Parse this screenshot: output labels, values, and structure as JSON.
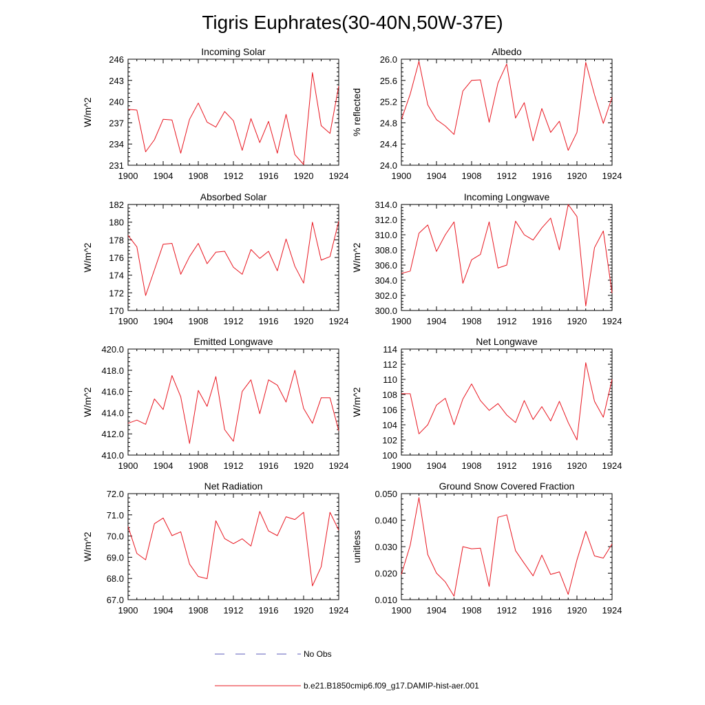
{
  "figure": {
    "title": "Tigris Euphrates(30-40N,50W-37E)",
    "series_color": "#e8141e",
    "obs_color": "#5a5ab8"
  },
  "legend": {
    "obs_label": "No Obs",
    "model_label": "b.e21.B1850cmip6.f09_g17.DAMIP-hist-aer.001"
  },
  "chart_data": [
    {
      "type": "line",
      "title": "Incoming Solar",
      "ylabel": "W/m^2",
      "xlim": [
        1900,
        1924
      ],
      "ylim": [
        231,
        246
      ],
      "xticks": [
        "1900",
        "1904",
        "1908",
        "1912",
        "1916",
        "1920",
        "1924"
      ],
      "yticks": [
        "231",
        "234",
        "237",
        "240",
        "243",
        "246"
      ],
      "x": [
        1900,
        1901,
        1902,
        1903,
        1904,
        1905,
        1906,
        1907,
        1908,
        1909,
        1910,
        1911,
        1912,
        1913,
        1914,
        1915,
        1916,
        1917,
        1918,
        1919,
        1920,
        1921,
        1922,
        1923,
        1924
      ],
      "series": [
        {
          "name": "b.e21.B1850cmip6.f09_g17.DAMIP-hist-aer.001",
          "values": [
            238.9,
            238.8,
            232.9,
            234.6,
            237.5,
            237.4,
            232.7,
            237.5,
            239.8,
            237.1,
            236.4,
            238.6,
            237.3,
            233.1,
            237.6,
            234.2,
            237.2,
            232.7,
            238.2,
            232.5,
            231.1,
            244.1,
            236.6,
            235.5,
            242.2
          ]
        }
      ]
    },
    {
      "type": "line",
      "title": "Albedo",
      "ylabel": "% reflected",
      "xlim": [
        1900,
        1924
      ],
      "ylim": [
        24.0,
        26.0
      ],
      "xticks": [
        "1900",
        "1904",
        "1908",
        "1912",
        "1916",
        "1920",
        "1924"
      ],
      "yticks": [
        "24.0",
        "24.4",
        "24.8",
        "25.2",
        "25.6",
        "26.0"
      ],
      "x": [
        1900,
        1901,
        1902,
        1903,
        1904,
        1905,
        1906,
        1907,
        1908,
        1909,
        1910,
        1911,
        1912,
        1913,
        1914,
        1915,
        1916,
        1917,
        1918,
        1919,
        1920,
        1921,
        1922,
        1923,
        1924
      ],
      "series": [
        {
          "name": "b.e21.B1850cmip6.f09_g17.DAMIP-hist-aer.001",
          "values": [
            24.86,
            25.34,
            25.96,
            25.14,
            24.86,
            24.74,
            24.58,
            25.4,
            25.6,
            25.61,
            24.81,
            25.55,
            25.91,
            24.89,
            25.18,
            24.46,
            25.07,
            24.62,
            24.83,
            24.28,
            24.62,
            25.94,
            25.33,
            24.79,
            25.28
          ]
        }
      ]
    },
    {
      "type": "line",
      "title": "Absorbed Solar",
      "ylabel": "W/m^2",
      "xlim": [
        1900,
        1924
      ],
      "ylim": [
        170,
        182
      ],
      "xticks": [
        "1900",
        "1904",
        "1908",
        "1912",
        "1916",
        "1920",
        "1924"
      ],
      "yticks": [
        "170",
        "172",
        "174",
        "176",
        "178",
        "180",
        "182"
      ],
      "x": [
        1900,
        1901,
        1902,
        1903,
        1904,
        1905,
        1906,
        1907,
        1908,
        1909,
        1910,
        1911,
        1912,
        1913,
        1914,
        1915,
        1916,
        1917,
        1918,
        1919,
        1920,
        1921,
        1922,
        1923,
        1924
      ],
      "series": [
        {
          "name": "b.e21.B1850cmip6.f09_g17.DAMIP-hist-aer.001",
          "values": [
            178.5,
            177.2,
            171.7,
            174.6,
            177.5,
            177.6,
            174.1,
            176.1,
            177.6,
            175.3,
            176.6,
            176.7,
            174.9,
            174.1,
            176.9,
            175.9,
            176.7,
            174.5,
            178.1,
            175.0,
            173.1,
            180.0,
            175.7,
            176.1,
            180.1
          ]
        }
      ]
    },
    {
      "type": "line",
      "title": "Incoming Longwave",
      "ylabel": "W/m^2",
      "xlim": [
        1900,
        1924
      ],
      "ylim": [
        300.0,
        314.0
      ],
      "xticks": [
        "1900",
        "1904",
        "1908",
        "1912",
        "1916",
        "1920",
        "1924"
      ],
      "yticks": [
        "300.0",
        "302.0",
        "304.0",
        "306.0",
        "308.0",
        "310.0",
        "312.0",
        "314.0"
      ],
      "x": [
        1900,
        1901,
        1902,
        1903,
        1904,
        1905,
        1906,
        1907,
        1908,
        1909,
        1910,
        1911,
        1912,
        1913,
        1914,
        1915,
        1916,
        1917,
        1918,
        1919,
        1920,
        1921,
        1922,
        1923,
        1924
      ],
      "series": [
        {
          "name": "b.e21.B1850cmip6.f09_g17.DAMIP-hist-aer.001",
          "values": [
            304.9,
            305.2,
            310.2,
            311.3,
            307.8,
            310.0,
            311.7,
            303.6,
            306.7,
            307.4,
            311.7,
            305.6,
            306.0,
            311.8,
            310.0,
            309.3,
            310.9,
            312.2,
            308.0,
            314.0,
            312.4,
            300.6,
            308.3,
            310.5,
            302.3
          ]
        }
      ]
    },
    {
      "type": "line",
      "title": "Emitted Longwave",
      "ylabel": "W/m^2",
      "xlim": [
        1900,
        1924
      ],
      "ylim": [
        410.0,
        420.0
      ],
      "xticks": [
        "1900",
        "1904",
        "1908",
        "1912",
        "1916",
        "1920",
        "1924"
      ],
      "yticks": [
        "410.0",
        "412.0",
        "414.0",
        "416.0",
        "418.0",
        "420.0"
      ],
      "x": [
        1900,
        1901,
        1902,
        1903,
        1904,
        1905,
        1906,
        1907,
        1908,
        1909,
        1910,
        1911,
        1912,
        1913,
        1914,
        1915,
        1916,
        1917,
        1918,
        1919,
        1920,
        1921,
        1922,
        1923,
        1924
      ],
      "series": [
        {
          "name": "b.e21.B1850cmip6.f09_g17.DAMIP-hist-aer.001",
          "values": [
            413.0,
            413.3,
            412.9,
            415.3,
            414.3,
            417.5,
            415.5,
            411.1,
            416.1,
            414.6,
            417.4,
            412.4,
            411.3,
            416.0,
            417.1,
            413.9,
            417.1,
            416.6,
            415.0,
            418.0,
            414.4,
            413.0,
            415.4,
            415.4,
            412.3
          ]
        }
      ]
    },
    {
      "type": "line",
      "title": "Net Longwave",
      "ylabel": "W/m^2",
      "xlim": [
        1900,
        1924
      ],
      "ylim": [
        100,
        114
      ],
      "xticks": [
        "1900",
        "1904",
        "1908",
        "1912",
        "1916",
        "1920",
        "1924"
      ],
      "yticks": [
        "100",
        "102",
        "104",
        "106",
        "108",
        "110",
        "112",
        "114"
      ],
      "x": [
        1900,
        1901,
        1902,
        1903,
        1904,
        1905,
        1906,
        1907,
        1908,
        1909,
        1910,
        1911,
        1912,
        1913,
        1914,
        1915,
        1916,
        1917,
        1918,
        1919,
        1920,
        1921,
        1922,
        1923,
        1924
      ],
      "series": [
        {
          "name": "b.e21.B1850cmip6.f09_g17.DAMIP-hist-aer.001",
          "values": [
            108.1,
            108.1,
            102.8,
            104.0,
            106.6,
            107.5,
            104.0,
            107.4,
            109.4,
            107.2,
            105.9,
            106.8,
            105.3,
            104.3,
            107.2,
            104.7,
            106.4,
            104.5,
            107.1,
            104.3,
            102.0,
            112.2,
            107.1,
            105.0,
            110.0
          ]
        }
      ]
    },
    {
      "type": "line",
      "title": "Net Radiation",
      "ylabel": "W/m^2",
      "xlim": [
        1900,
        1924
      ],
      "ylim": [
        67.0,
        72.0
      ],
      "xticks": [
        "1900",
        "1904",
        "1908",
        "1912",
        "1916",
        "1920",
        "1924"
      ],
      "yticks": [
        "67.0",
        "68.0",
        "69.0",
        "70.0",
        "71.0",
        "72.0"
      ],
      "x": [
        1900,
        1901,
        1902,
        1903,
        1904,
        1905,
        1906,
        1907,
        1908,
        1909,
        1910,
        1911,
        1912,
        1913,
        1914,
        1915,
        1916,
        1917,
        1918,
        1919,
        1920,
        1921,
        1922,
        1923,
        1924
      ],
      "series": [
        {
          "name": "b.e21.B1850cmip6.f09_g17.DAMIP-hist-aer.001",
          "values": [
            70.45,
            69.18,
            68.88,
            70.58,
            70.85,
            70.02,
            70.2,
            68.68,
            68.09,
            67.99,
            70.72,
            69.88,
            69.64,
            69.87,
            69.53,
            71.16,
            70.24,
            70.02,
            70.91,
            70.78,
            71.12,
            67.65,
            68.55,
            71.12,
            70.28
          ]
        }
      ]
    },
    {
      "type": "line",
      "title": "Ground Snow Covered Fraction",
      "ylabel": "unitless",
      "xlim": [
        1900,
        1924
      ],
      "ylim": [
        0.01,
        0.05
      ],
      "xticks": [
        "1900",
        "1904",
        "1908",
        "1912",
        "1916",
        "1920",
        "1924"
      ],
      "yticks": [
        "0.010",
        "0.020",
        "0.030",
        "0.040",
        "0.050"
      ],
      "x": [
        1900,
        1901,
        1902,
        1903,
        1904,
        1905,
        1906,
        1907,
        1908,
        1909,
        1910,
        1911,
        1912,
        1913,
        1914,
        1915,
        1916,
        1917,
        1918,
        1919,
        1920,
        1921,
        1922,
        1923,
        1924
      ],
      "series": [
        {
          "name": "b.e21.B1850cmip6.f09_g17.DAMIP-hist-aer.001",
          "values": [
            0.0195,
            0.0305,
            0.0485,
            0.027,
            0.02,
            0.0167,
            0.0113,
            0.03,
            0.0292,
            0.0294,
            0.015,
            0.0411,
            0.042,
            0.0285,
            0.0237,
            0.019,
            0.0268,
            0.0195,
            0.0205,
            0.012,
            0.025,
            0.0358,
            0.0265,
            0.0257,
            0.031
          ]
        }
      ]
    }
  ]
}
